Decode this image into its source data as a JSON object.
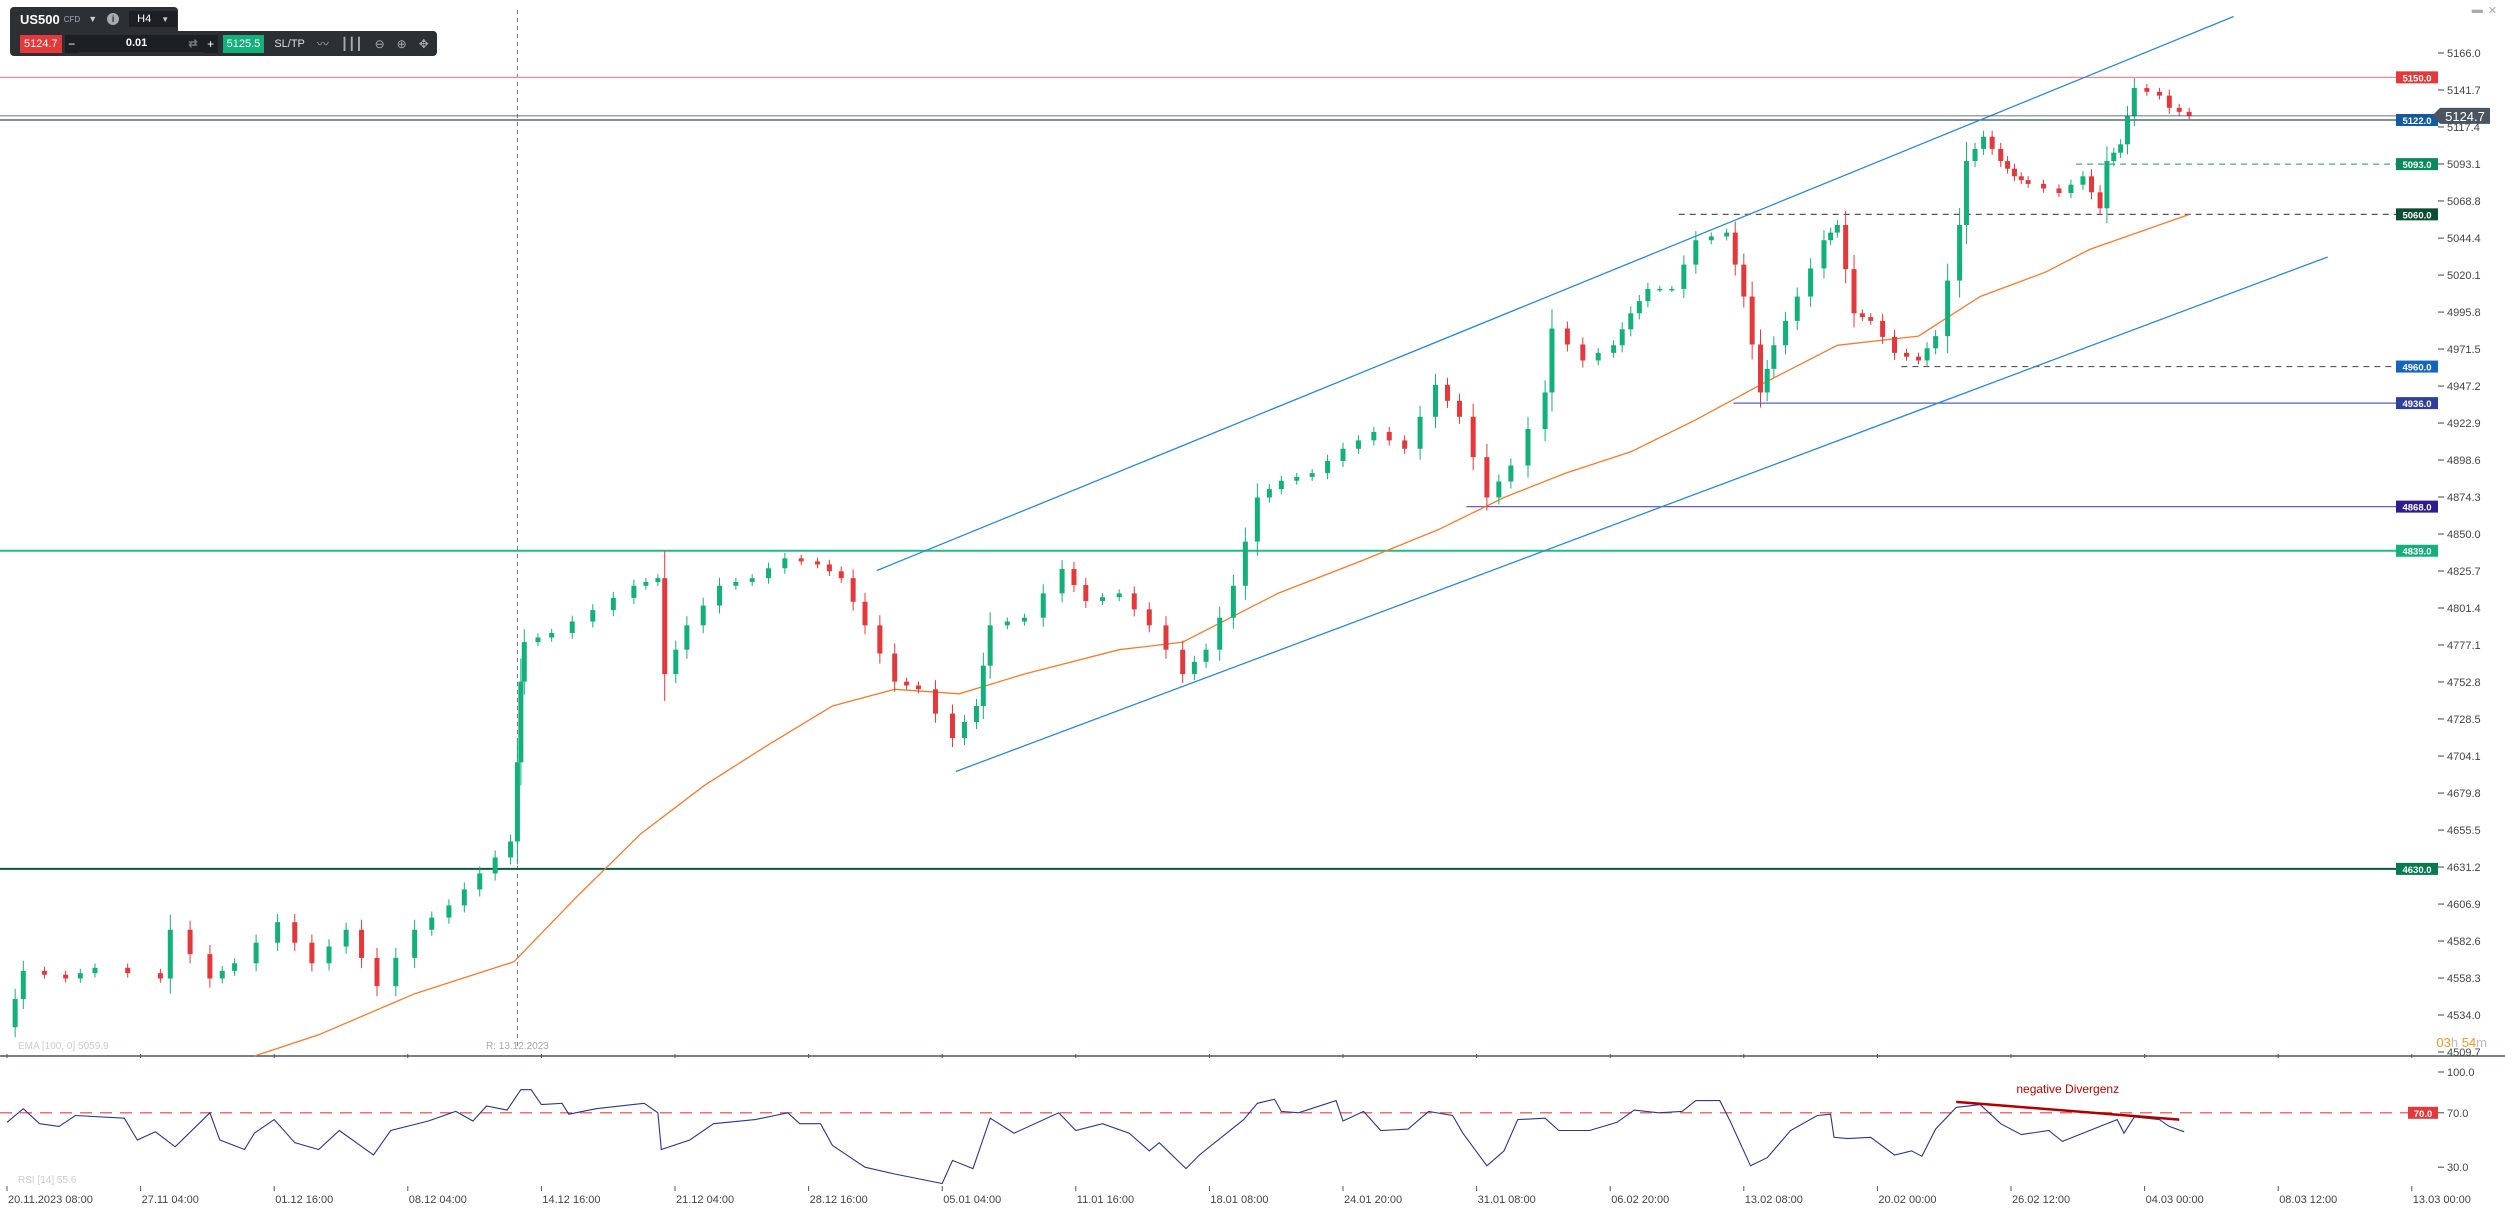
{
  "toolbar": {
    "symbol": "US500",
    "symbol_type": "CFD",
    "timeframe": "H4",
    "sell_price": "5124.7",
    "quantity": "0.01",
    "buy_price": "5125.5",
    "sltp_label": "SL/TP",
    "icons": [
      "chevron-down-icon",
      "info-icon",
      "swap-icon",
      "line-chart-icon",
      "candles-icon",
      "zoom-out-icon",
      "zoom-in-icon",
      "move-icon"
    ]
  },
  "window_controls": {
    "minimize": "▬",
    "close": "✕"
  },
  "countdown": {
    "hours": "03",
    "h": "h",
    "minutes": "54",
    "m": "m"
  },
  "colors": {
    "up": "#12b07a",
    "down": "#e5383b",
    "ema": "#f57c2b",
    "channel": "#2a8ad6",
    "rsi": "#2c3590",
    "rsi_level": "#e57373"
  },
  "chart_data": [
    {
      "type": "candlestick",
      "instrument": "US500",
      "timeframe": "H4",
      "y_ticks": [
        "5166.0",
        "5141.7",
        "5117.4",
        "5093.1",
        "5068.8",
        "5044.4",
        "5020.1",
        "4995.8",
        "4971.5",
        "4947.2",
        "4922.9",
        "4898.6",
        "4874.3",
        "4850.0",
        "4825.7",
        "4801.4",
        "4777.1",
        "4752.8",
        "4728.5",
        "4704.1",
        "4679.8",
        "4655.5",
        "4631.2",
        "4606.9",
        "4582.6",
        "4558.3",
        "4534.0",
        "4509.7"
      ],
      "ylim": [
        4509.7,
        5166.0
      ],
      "x_ticks": [
        "20.11.2023 08:00",
        "27.11 04:00",
        "01.12 16:00",
        "08.12 04:00",
        "14.12 16:00",
        "21.12 04:00",
        "28.12 16:00",
        "05.01 04:00",
        "11.01 16:00",
        "18.01 08:00",
        "24.01 20:00",
        "31.01 08:00",
        "06.02 20:00",
        "13.02 08:00",
        "20.02 00:00",
        "26.02 12:00",
        "04.03 00:00",
        "08.03 12:00",
        "13.03 00:00"
      ],
      "current_price": "5124.7",
      "price_path": [
        [
          "2023-11-20 08:00",
          4526
        ],
        [
          "2023-11-21 04:00",
          4563
        ],
        [
          "2023-11-23 08:00",
          4558
        ],
        [
          "2023-11-24 20:00",
          4565
        ],
        [
          "2023-11-27 20:00",
          4558
        ],
        [
          "2023-11-28 04:00",
          4590
        ],
        [
          "2023-11-29 12:00",
          4558
        ],
        [
          "2023-11-30 08:00",
          4568
        ],
        [
          "2023-12-01 20:00",
          4595
        ],
        [
          "2023-12-03 12:00",
          4568
        ],
        [
          "2023-12-05 04:00",
          4590
        ],
        [
          "2023-12-06 16:00",
          4553
        ],
        [
          "2023-12-08 12:00",
          4590
        ],
        [
          "2023-12-10 04:00",
          4606
        ],
        [
          "2023-12-11 16:00",
          4627
        ],
        [
          "2023-12-13 04:00",
          4648
        ],
        [
          "2023-12-13 12:00",
          4700
        ],
        [
          "2023-12-13 16:00",
          4753
        ],
        [
          "2023-12-13 20:00",
          4779
        ],
        [
          "2023-12-15 04:00",
          4785
        ],
        [
          "2023-12-17 04:00",
          4800
        ],
        [
          "2023-12-19 04:00",
          4816
        ],
        [
          "2023-12-20 08:00",
          4821
        ],
        [
          "2023-12-20 16:00",
          4758
        ],
        [
          "2023-12-21 20:00",
          4790
        ],
        [
          "2023-12-23 16:00",
          4816
        ],
        [
          "2023-12-25 12:00",
          4821
        ],
        [
          "2023-12-27 08:00",
          4834
        ],
        [
          "2023-12-29 04:00",
          4830
        ],
        [
          "2023-12-30 12:00",
          4821
        ],
        [
          "2023-12-31 20:00",
          4790
        ],
        [
          "2024-01-02 12:00",
          4753
        ],
        [
          "2024-01-03 20:00",
          4748
        ],
        [
          "2024-01-05 16:00",
          4716
        ],
        [
          "2024-01-06 20:00",
          4737
        ],
        [
          "2024-01-07 12:00",
          4790
        ],
        [
          "2024-01-09 04:00",
          4795
        ],
        [
          "2024-01-11 00:00",
          4827
        ],
        [
          "2024-01-12 04:00",
          4806
        ],
        [
          "2024-01-13 20:00",
          4811
        ],
        [
          "2024-01-15 08:00",
          4790
        ],
        [
          "2024-01-17 00:00",
          4758
        ],
        [
          "2024-01-18 04:00",
          4774
        ],
        [
          "2024-01-19 12:00",
          4816
        ],
        [
          "2024-01-20 16:00",
          4874
        ],
        [
          "2024-01-21 20:00",
          4885
        ],
        [
          "2024-01-23 08:00",
          4890
        ],
        [
          "2024-01-24 20:00",
          4906
        ],
        [
          "2024-01-26 08:00",
          4917
        ],
        [
          "2024-01-27 20:00",
          4906
        ],
        [
          "2024-01-29 08:00",
          4948
        ],
        [
          "2024-01-30 12:00",
          4927
        ],
        [
          "2024-01-31 20:00",
          4874
        ],
        [
          "2024-02-02 00:00",
          4895
        ],
        [
          "2024-02-03 16:00",
          4943
        ],
        [
          "2024-02-04 00:00",
          4985
        ],
        [
          "2024-02-05 12:00",
          4964
        ],
        [
          "2024-02-07 00:00",
          4974
        ],
        [
          "2024-02-07 20:00",
          4995
        ],
        [
          "2024-02-08 16:00",
          5011
        ],
        [
          "2024-02-09 20:00",
          5011
        ],
        [
          "2024-02-11 00:00",
          5043
        ],
        [
          "2024-02-12 12:00",
          5048
        ],
        [
          "2024-02-13 08:00",
          5006
        ],
        [
          "2024-02-14 04:00",
          4943
        ],
        [
          "2024-02-14 20:00",
          4974
        ],
        [
          "2024-02-16 00:00",
          5006
        ],
        [
          "2024-02-17 08:00",
          5043
        ],
        [
          "2024-02-18 00:00",
          5053
        ],
        [
          "2024-02-18 20:00",
          4995
        ],
        [
          "2024-02-19 16:00",
          4990
        ],
        [
          "2024-02-20 20:00",
          4969
        ],
        [
          "2024-02-22 00:00",
          4964
        ],
        [
          "2024-02-22 20:00",
          4980
        ],
        [
          "2024-02-24 00:00",
          5053
        ],
        [
          "2024-02-24 08:00",
          5095
        ],
        [
          "2024-02-25 04:00",
          5111
        ],
        [
          "2024-02-26 00:00",
          5095
        ],
        [
          "2024-02-26 16:00",
          5085
        ],
        [
          "2024-02-27 08:00",
          5080
        ],
        [
          "2024-02-28 20:00",
          5074
        ],
        [
          "2024-03-01 00:00",
          5085
        ],
        [
          "2024-03-01 20:00",
          5064
        ],
        [
          "2024-03-02 04:00",
          5095
        ],
        [
          "2024-03-02 20:00",
          5106
        ],
        [
          "2024-03-03 12:00",
          5143
        ],
        [
          "2024-03-04 12:00",
          5138
        ],
        [
          "2024-03-04 20:00",
          5130
        ],
        [
          "2024-03-05 12:00",
          5124.7
        ]
      ],
      "ema": {
        "label": "EMA [100, 0] 5059.9",
        "points": [
          [
            "2023-12-01 00:00",
            4505
          ],
          [
            "2023-12-03 20:00",
            4521
          ],
          [
            "2023-12-08 12:00",
            4548
          ],
          [
            "2023-12-13 08:00",
            4569
          ],
          [
            "2023-12-16 08:00",
            4611
          ],
          [
            "2023-12-19 12:00",
            4653
          ],
          [
            "2023-12-22 20:00",
            4685
          ],
          [
            "2023-12-26 08:00",
            4711
          ],
          [
            "2023-12-30 00:00",
            4737
          ],
          [
            "2024-01-02 12:00",
            4748
          ],
          [
            "2024-01-06 00:00",
            4745
          ],
          [
            "2024-01-09 04:00",
            4758
          ],
          [
            "2024-01-13 20:00",
            4774
          ],
          [
            "2024-01-17 00:00",
            4779
          ],
          [
            "2024-01-21 16:00",
            4811
          ],
          [
            "2024-01-25 16:00",
            4832
          ],
          [
            "2024-01-29 12:00",
            4853
          ],
          [
            "2024-02-01 16:00",
            4874
          ],
          [
            "2024-02-04 16:00",
            4890
          ],
          [
            "2024-02-07 20:00",
            4904
          ],
          [
            "2024-02-11 00:00",
            4925
          ],
          [
            "2024-02-14 04:00",
            4948
          ],
          [
            "2024-02-18 00:00",
            4974
          ],
          [
            "2024-02-22 00:00",
            4980
          ],
          [
            "2024-02-25 00:00",
            5006
          ],
          [
            "2024-02-28 04:00",
            5022
          ],
          [
            "2024-03-01 08:00",
            5037
          ],
          [
            "2024-03-05 12:00",
            5059.9
          ]
        ]
      },
      "levels": [
        {
          "value": "5150.0",
          "color": "#e5383b",
          "line": "#f28b8b",
          "style": "solid",
          "from": null
        },
        {
          "value": "5122.0",
          "color": "#0d5ca8",
          "line": "#34495e",
          "style": "solid",
          "from": null
        },
        {
          "value": "5093.0",
          "color": "#0a8a5c",
          "line": "#4aa88a",
          "style": "dashed",
          "from": "2024-02-29 16:00"
        },
        {
          "value": "5060.0",
          "color": "#0b4d34",
          "line": "#555555",
          "style": "dashed",
          "from": "2024-02-10 04:00"
        },
        {
          "value": "4960.0",
          "color": "#1565c0",
          "line": "#555555",
          "style": "dashed",
          "from": "2024-02-21 04:00"
        },
        {
          "value": "4936.0",
          "color": "#303f9f",
          "line": "#5060c0",
          "style": "solid",
          "from": "2024-02-12 20:00"
        },
        {
          "value": "4868.0",
          "color": "#311b92",
          "line": "#6a5acd",
          "style": "solid",
          "from": "2024-01-30 20:00"
        },
        {
          "value": "4839.0",
          "color": "#12b07a",
          "line": "#16c08a",
          "style": "solid",
          "from": null
        },
        {
          "value": "4630.0",
          "color": "#087a4f",
          "line": "#0a5a40",
          "style": "solid",
          "from": null
        }
      ],
      "channel": [
        {
          "from": [
            "2024-01-01 12:00",
            4826
          ],
          "to": [
            "2024-03-07 00:00",
            5190
          ]
        },
        {
          "from": [
            "2024-01-05 20:00",
            4694
          ],
          "to": [
            "2024-03-10 04:00",
            5032
          ]
        }
      ],
      "crosshair": {
        "label": "R: 13.12.2023",
        "date": "2023-12-13 12:00"
      }
    },
    {
      "type": "line",
      "label": "RSI [14] 55.6",
      "y_ticks": [
        "100.0",
        "70.0",
        "30.0"
      ],
      "level": {
        "value": "70.0"
      },
      "annotation": {
        "text": "negative Divergenz",
        "from": [
          "2024-02-23 20:00",
          78
        ],
        "to": [
          "2024-03-05 04:00",
          65
        ]
      },
      "values": [
        [
          "2023-11-20 08:00",
          63
        ],
        [
          "2023-11-21 04:00",
          73
        ],
        [
          "2023-11-22 00:00",
          62
        ],
        [
          "2023-11-23 00:00",
          60
        ],
        [
          "2023-11-23 20:00",
          68
        ],
        [
          "2023-11-26 08:00",
          66
        ],
        [
          "2023-11-27 00:00",
          50
        ],
        [
          "2023-11-27 16:00",
          56
        ],
        [
          "2023-11-28 08:00",
          45
        ],
        [
          "2023-11-29 12:00",
          70
        ],
        [
          "2023-11-29 20:00",
          50
        ],
        [
          "2023-11-30 16:00",
          43
        ],
        [
          "2023-12-01 00:00",
          55
        ],
        [
          "2023-12-01 16:00",
          65
        ],
        [
          "2023-12-02 16:00",
          48
        ],
        [
          "2023-12-03 20:00",
          43
        ],
        [
          "2023-12-04 20:00",
          57
        ],
        [
          "2023-12-06 12:00",
          39
        ],
        [
          "2023-12-07 08:00",
          57
        ],
        [
          "2023-12-09 04:00",
          64
        ],
        [
          "2023-12-10 12:00",
          71
        ],
        [
          "2023-12-11 08:00",
          64
        ],
        [
          "2023-12-12 00:00",
          75
        ],
        [
          "2023-12-13 00:00",
          72
        ],
        [
          "2023-12-13 16:00",
          87
        ],
        [
          "2023-12-14 04:00",
          87
        ],
        [
          "2023-12-14 16:00",
          76
        ],
        [
          "2023-12-15 16:00",
          77
        ],
        [
          "2023-12-16 00:00",
          69
        ],
        [
          "2023-12-17 08:00",
          73
        ],
        [
          "2023-12-19 16:00",
          77
        ],
        [
          "2023-12-20 08:00",
          70
        ],
        [
          "2023-12-20 12:00",
          43
        ],
        [
          "2023-12-22 00:00",
          50
        ],
        [
          "2023-12-23 08:00",
          62
        ],
        [
          "2023-12-25 16:00",
          65
        ],
        [
          "2023-12-27 12:00",
          70
        ],
        [
          "2023-12-28 04:00",
          62
        ],
        [
          "2023-12-29 08:00",
          62
        ],
        [
          "2023-12-30 00:00",
          46
        ],
        [
          "2023-12-31 20:00",
          30
        ],
        [
          "2024-01-02 12:00",
          25
        ],
        [
          "2024-01-05 04:00",
          18
        ],
        [
          "2024-01-05 16:00",
          35
        ],
        [
          "2024-01-06 16:00",
          29
        ],
        [
          "2024-01-07 12:00",
          66
        ],
        [
          "2024-01-08 16:00",
          55
        ],
        [
          "2024-01-10 20:00",
          70
        ],
        [
          "2024-01-11 16:00",
          57
        ],
        [
          "2024-01-13 00:00",
          62
        ],
        [
          "2024-01-14 08:00",
          55
        ],
        [
          "2024-01-15 08:00",
          42
        ],
        [
          "2024-01-15 20:00",
          48
        ],
        [
          "2024-01-17 04:00",
          29
        ],
        [
          "2024-01-17 20:00",
          39
        ],
        [
          "2024-01-18 16:00",
          49
        ],
        [
          "2024-01-20 00:00",
          65
        ],
        [
          "2024-01-20 16:00",
          77
        ],
        [
          "2024-01-21 12:00",
          80
        ],
        [
          "2024-01-21 20:00",
          71
        ],
        [
          "2024-01-22 16:00",
          70
        ],
        [
          "2024-01-24 12:00",
          79
        ],
        [
          "2024-01-24 20:00",
          64
        ],
        [
          "2024-01-25 20:00",
          71
        ],
        [
          "2024-01-26 16:00",
          57
        ],
        [
          "2024-01-28 00:00",
          58
        ],
        [
          "2024-01-29 00:00",
          71
        ],
        [
          "2024-01-30 04:00",
          68
        ],
        [
          "2024-01-30 16:00",
          55
        ],
        [
          "2024-01-31 20:00",
          31
        ],
        [
          "2024-02-01 16:00",
          42
        ],
        [
          "2024-02-02 08:00",
          65
        ],
        [
          "2024-02-03 16:00",
          66
        ],
        [
          "2024-02-04 08:00",
          57
        ],
        [
          "2024-02-05 20:00",
          57
        ],
        [
          "2024-02-07 04:00",
          63
        ],
        [
          "2024-02-08 00:00",
          72
        ],
        [
          "2024-02-09 04:00",
          70
        ],
        [
          "2024-02-10 08:00",
          71
        ],
        [
          "2024-02-11 00:00",
          79
        ],
        [
          "2024-02-12 04:00",
          79
        ],
        [
          "2024-02-12 16:00",
          64
        ],
        [
          "2024-02-13 16:00",
          31
        ],
        [
          "2024-02-14 12:00",
          37
        ],
        [
          "2024-02-15 16:00",
          57
        ],
        [
          "2024-02-17 00:00",
          68
        ],
        [
          "2024-02-17 16:00",
          69
        ],
        [
          "2024-02-17 20:00",
          52
        ],
        [
          "2024-02-18 12:00",
          51
        ],
        [
          "2024-02-19 16:00",
          52
        ],
        [
          "2024-02-20 20:00",
          39
        ],
        [
          "2024-02-21 16:00",
          42
        ],
        [
          "2024-02-22 04:00",
          38
        ],
        [
          "2024-02-22 20:00",
          58
        ],
        [
          "2024-02-23 20:00",
          74
        ],
        [
          "2024-02-25 00:00",
          76
        ],
        [
          "2024-02-26 00:00",
          62
        ],
        [
          "2024-02-27 00:00",
          54
        ],
        [
          "2024-02-28 08:00",
          57
        ],
        [
          "2024-02-29 00:00",
          49
        ],
        [
          "2024-03-01 16:00",
          59
        ],
        [
          "2024-03-02 16:00",
          65
        ],
        [
          "2024-03-03 00:00",
          55
        ],
        [
          "2024-03-03 12:00",
          67
        ],
        [
          "2024-03-04 12:00",
          65
        ],
        [
          "2024-03-04 20:00",
          60
        ],
        [
          "2024-03-05 08:00",
          56
        ]
      ]
    }
  ]
}
